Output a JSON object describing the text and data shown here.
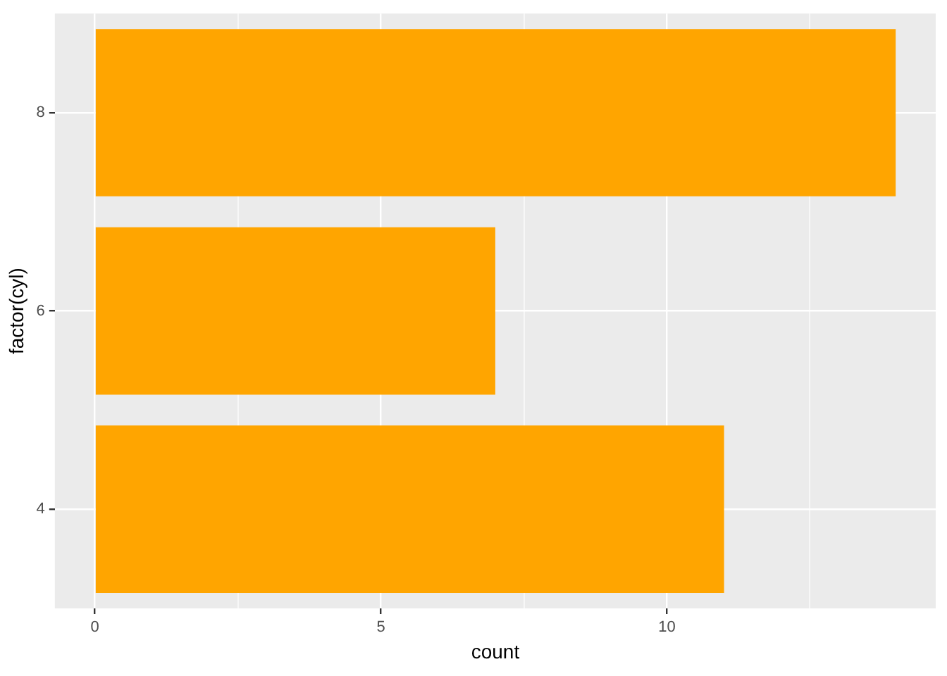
{
  "chart_data": {
    "type": "bar",
    "orientation": "horizontal",
    "xlabel": "count",
    "ylabel": "factor(cyl)",
    "categories": [
      "8",
      "6",
      "4"
    ],
    "values": [
      14,
      7,
      11
    ],
    "color": "#ffa500",
    "xlim": [
      -0.7,
      14.7
    ],
    "xticks": [
      0,
      {
        "value": 2.5,
        "label": null
      },
      5,
      {
        "value": 7.5,
        "label": null
      },
      10,
      {
        "value": 12.5,
        "label": null
      }
    ],
    "grid": true,
    "legend": false
  }
}
